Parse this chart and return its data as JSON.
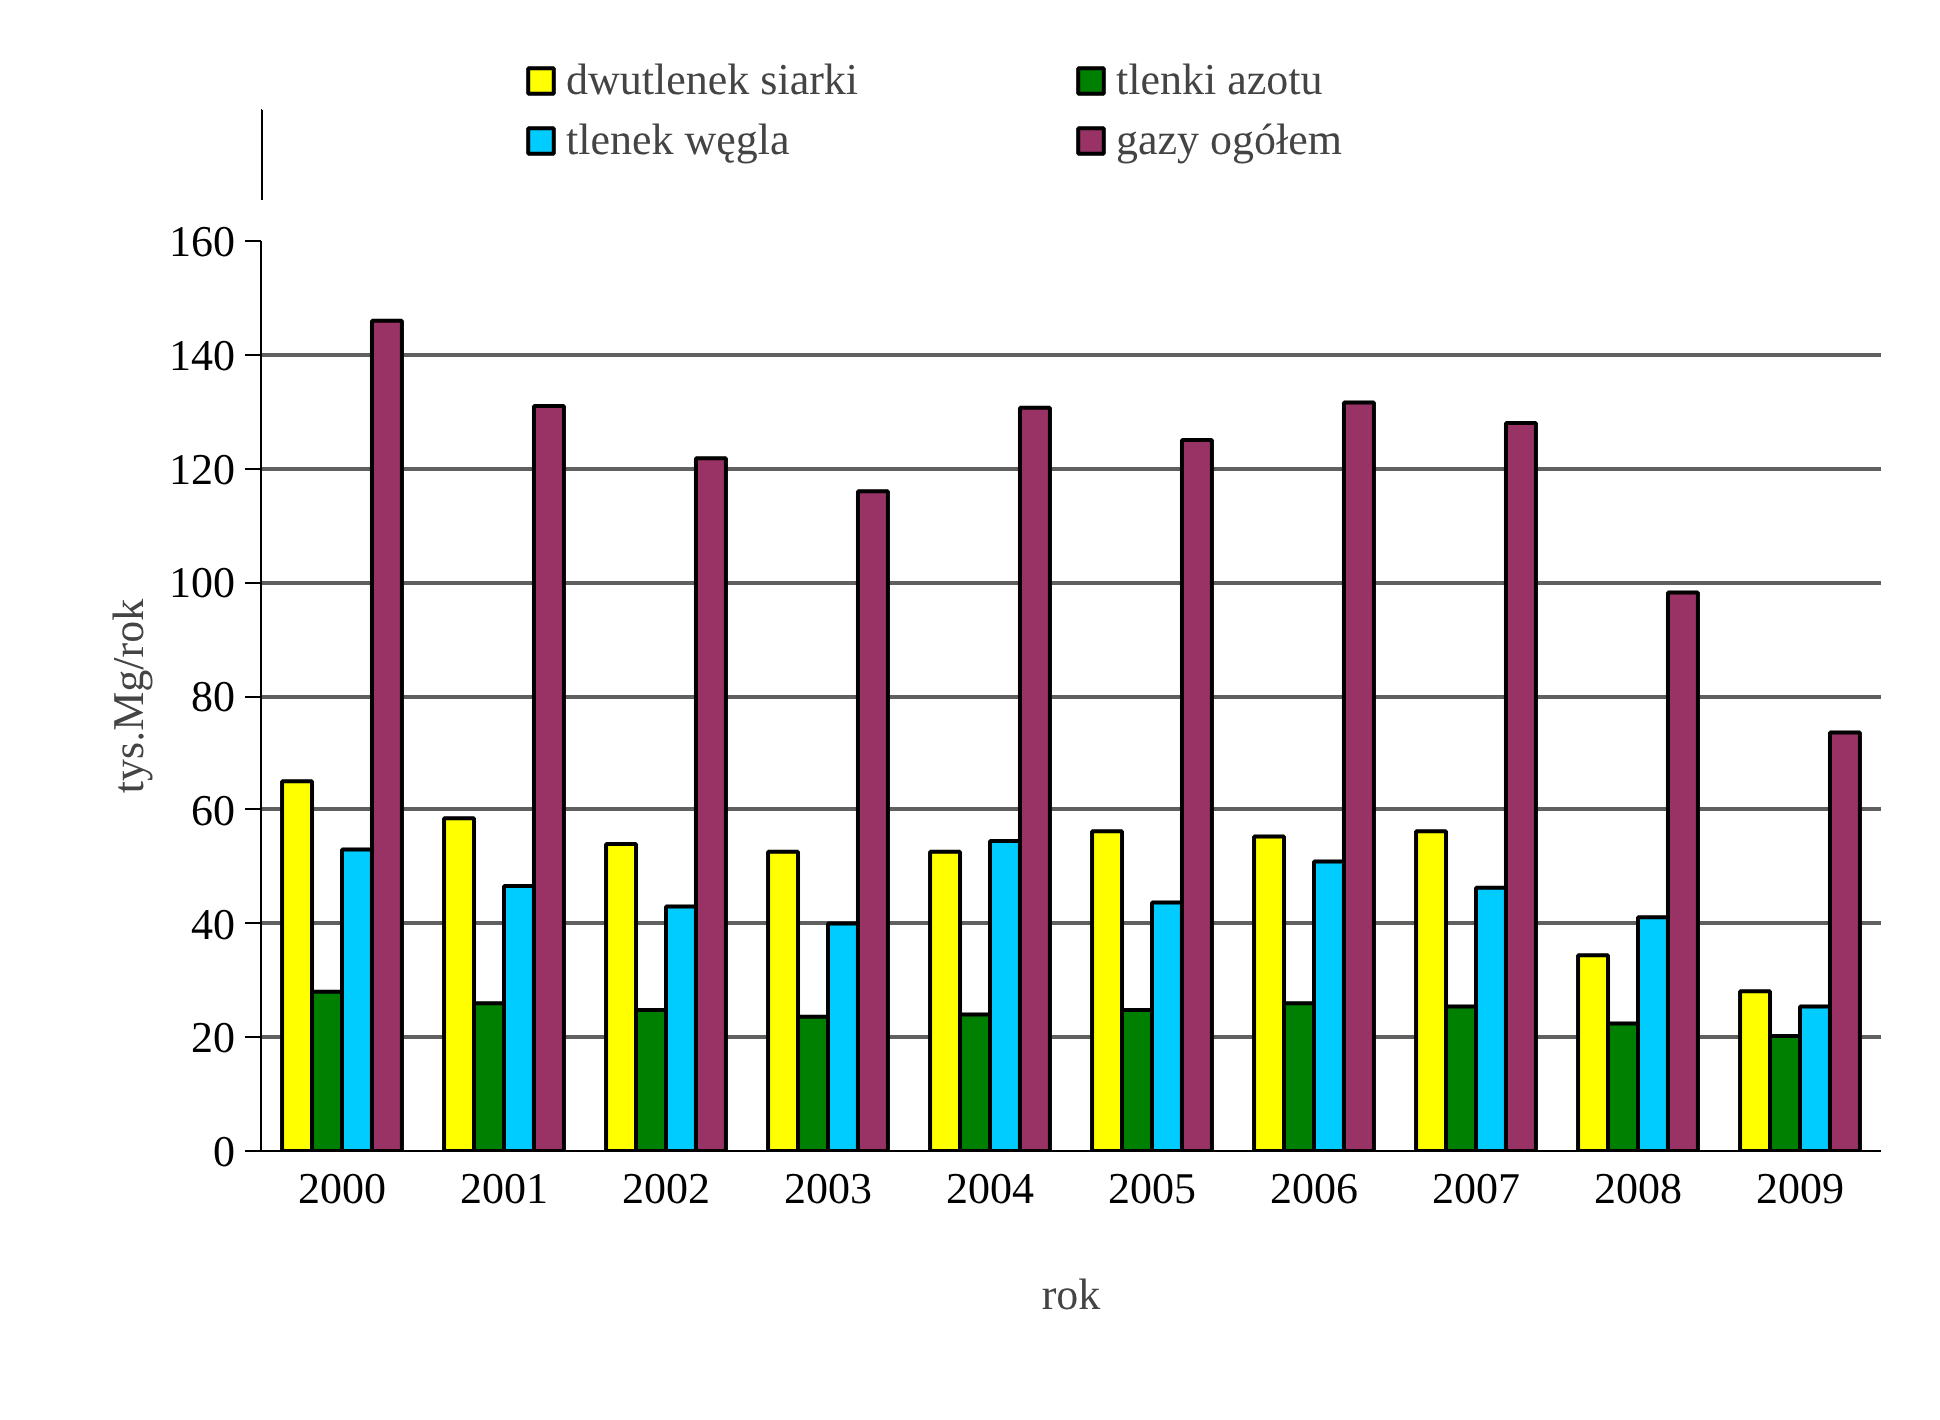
{
  "chart_data": {
    "type": "bar",
    "xlabel": "rok",
    "ylabel": "tys.Mg/rok",
    "categories": [
      "2000",
      "2001",
      "2002",
      "2003",
      "2004",
      "2005",
      "2006",
      "2007",
      "2008",
      "2009"
    ],
    "series": [
      {
        "name": "dwutlenek siarki",
        "color": "#ffff00",
        "values": [
          65,
          58.5,
          54,
          52.6,
          52.6,
          56.2,
          55.3,
          56.2,
          34.4,
          28.1
        ]
      },
      {
        "name": "tlenki azotu",
        "color": "#008000",
        "values": [
          28,
          26,
          24.8,
          23.6,
          24,
          24.8,
          26,
          25.4,
          22.4,
          20.2
        ]
      },
      {
        "name": "tlenek węgla",
        "color": "#00ccff",
        "values": [
          53,
          46.6,
          43,
          40,
          54.5,
          43.7,
          50.9,
          46.3,
          41.1,
          25.4
        ]
      },
      {
        "name": "gazy ogółem",
        "color": "#993366",
        "values": [
          146,
          131,
          121.8,
          116,
          130.7,
          125,
          131.6,
          128,
          98.2,
          73.6
        ]
      }
    ],
    "ylim": [
      0,
      160
    ],
    "yticks": [
      0,
      20,
      40,
      60,
      80,
      100,
      120,
      140,
      160
    ],
    "grid": "y",
    "legend": "top"
  }
}
